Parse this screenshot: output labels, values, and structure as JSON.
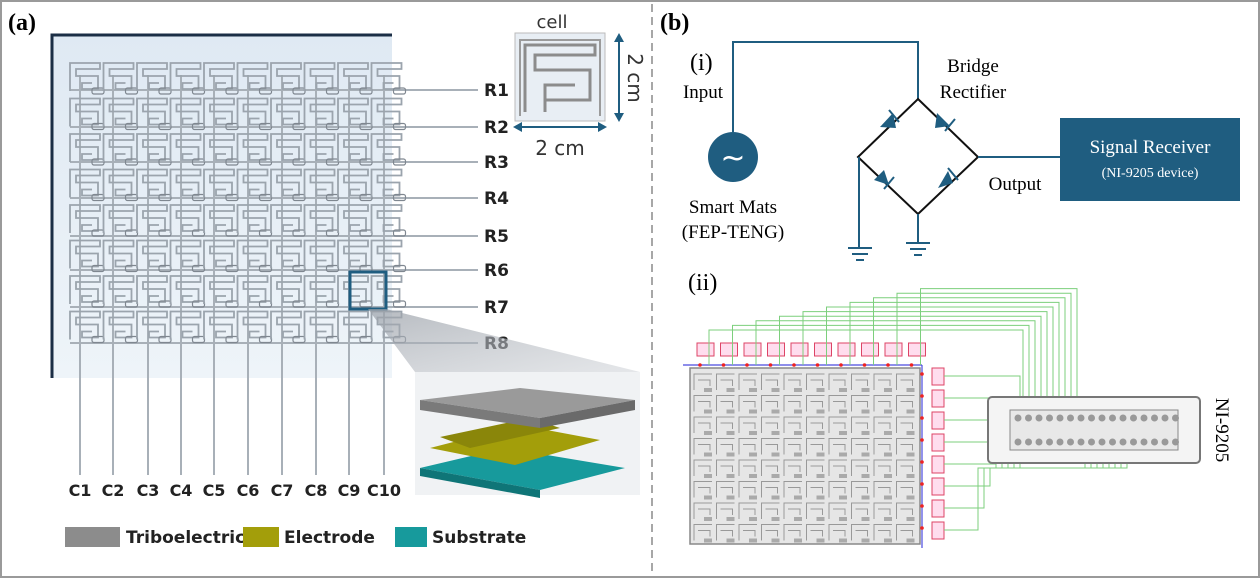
{
  "panel_a": {
    "label": "(a)",
    "rows": [
      "R1",
      "R2",
      "R3",
      "R4",
      "R5",
      "R6",
      "R7",
      "R8"
    ],
    "columns": [
      "C1",
      "C2",
      "C3",
      "C4",
      "C5",
      "C6",
      "C7",
      "C8",
      "C9",
      "C10"
    ],
    "cell_inset": {
      "title": "cell",
      "width_label": "2 cm",
      "height_label": "2 cm"
    },
    "legend": [
      {
        "label": "Triboelectric",
        "color": "#8c8c8c"
      },
      {
        "label": "Electrode",
        "color": "#a39e0a"
      },
      {
        "label": "Substrate",
        "color": "#179a9c"
      }
    ]
  },
  "panel_b": {
    "label": "(b)",
    "sub_i": {
      "label": "(i)",
      "input_label": "Input",
      "source_symbol": "~",
      "source_label_1": "Smart Mats",
      "source_label_2": "(FEP-TENG)",
      "rectifier_label_1": "Bridge",
      "rectifier_label_2": "Rectifier",
      "output_label": "Output",
      "receiver_title": "Signal Receiver",
      "receiver_subtitle": "(NI-9205 device)"
    },
    "sub_ii": {
      "label": "(ii)",
      "device_label": "NI-9205"
    }
  },
  "colors": {
    "circuit": "#1f5d80",
    "board_border": "#1b2e45",
    "wire_green": "#7ccf7c",
    "highlight": "#1f5d80"
  }
}
